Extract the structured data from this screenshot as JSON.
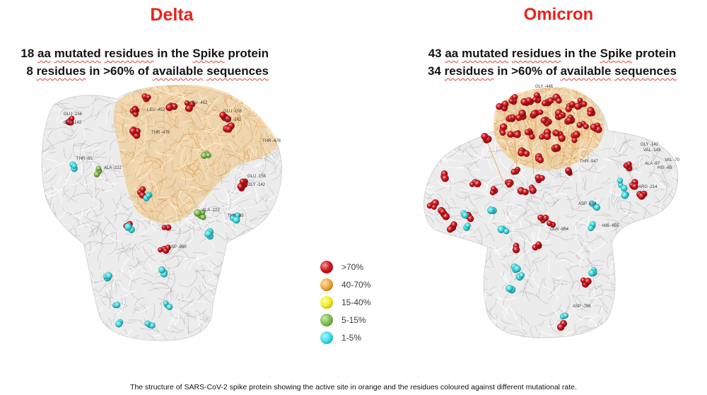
{
  "delta": {
    "title": "Delta",
    "header_line1": "18 aa mutated residues in the Spike protein",
    "header_line2": "8 residues in >60% of available sequences",
    "residue_labels": [
      "GLU -156",
      "GLY -142",
      "THR -95",
      "ALA -222",
      "LEU -452",
      "THR -478",
      "LEU -452",
      "GLU -156",
      "GLY -142",
      "THR -478",
      "GLU -156",
      "GLY -142",
      "ALA -222",
      "THR -95",
      "ASP -950"
    ]
  },
  "omicron": {
    "title": "Omicron",
    "header_line1": "43 aa mutated residues in the Spike protein",
    "header_line2": "34 residues in >60% of available sequences",
    "residue_labels": [
      "GLY -446",
      "THR -547",
      "GLY -142",
      "VAL -143",
      "ALA -67",
      "HIS -69",
      "VAL -70",
      "ARG -214",
      "ASP -614",
      "GLN -954",
      "HIS -655",
      "ASP -796"
    ]
  },
  "legend": [
    {
      "label": ">70%",
      "color": "#d3141c"
    },
    {
      "label": "40-70%",
      "color": "#f2a93b"
    },
    {
      "label": "15-40%",
      "color": "#f6f02b"
    },
    {
      "label": "5-15%",
      "color": "#80c24d"
    },
    {
      "label": "1-5%",
      "color": "#3fe3ec"
    }
  ],
  "colors": {
    "title": "#e8231b",
    "active_site": "#f3c27a",
    "structure": "#ececec"
  },
  "caption": "The structure of SARS-CoV-2 spike protein showing the active site in orange and the residues coloured against different mutational rate."
}
